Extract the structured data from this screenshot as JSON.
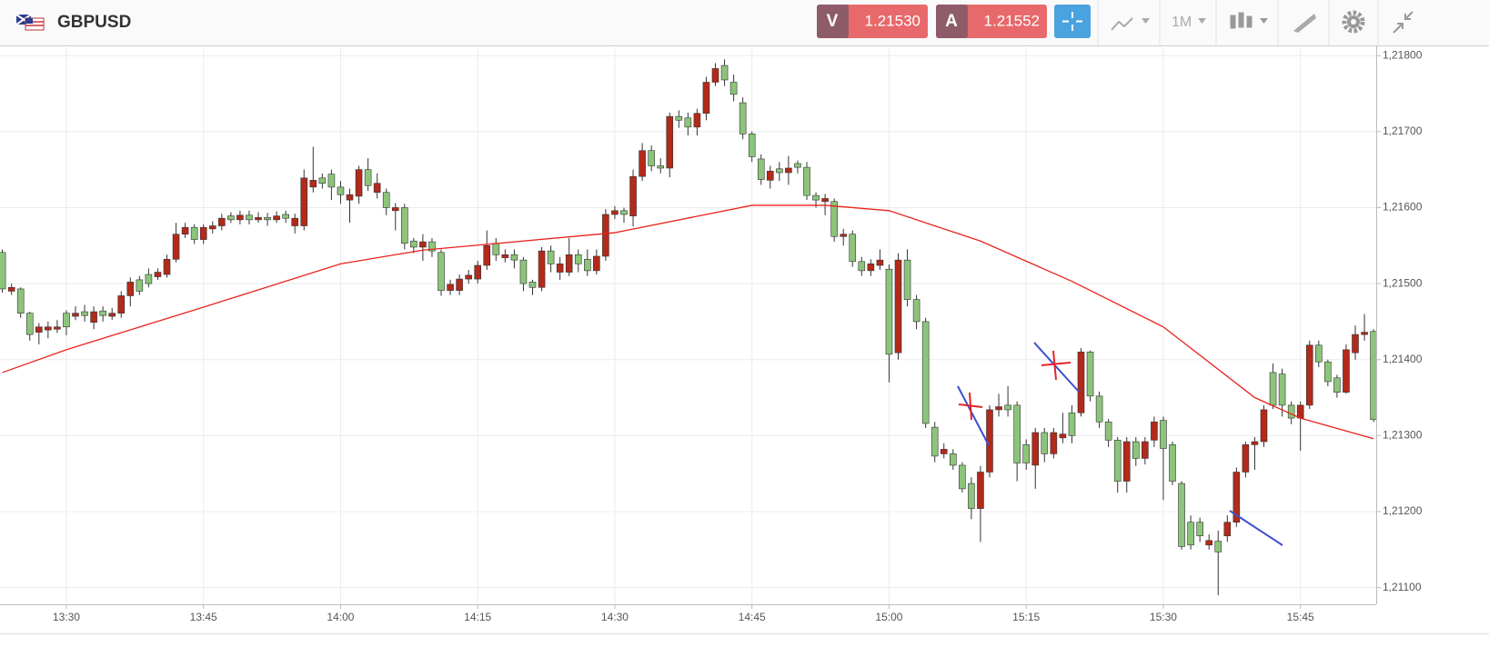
{
  "header": {
    "symbol": "GBPUSD",
    "bid_label": "V",
    "bid": "1.21530",
    "ask_label": "A",
    "ask": "1.21552",
    "timeframe": "1M"
  },
  "chart_data": {
    "type": "candlestick",
    "up_color": "#8cc57a",
    "down_color": "#b3291a",
    "grid": true,
    "x": [
      "13:23",
      "13:24",
      "13:25",
      "13:26",
      "13:27",
      "13:28",
      "13:29",
      "13:30",
      "13:31",
      "13:32",
      "13:33",
      "13:34",
      "13:35",
      "13:36",
      "13:37",
      "13:38",
      "13:39",
      "13:40",
      "13:41",
      "13:42",
      "13:43",
      "13:44",
      "13:45",
      "13:46",
      "13:47",
      "13:48",
      "13:49",
      "13:50",
      "13:51",
      "13:52",
      "13:53",
      "13:54",
      "13:55",
      "13:56",
      "13:57",
      "13:58",
      "13:59",
      "14:00",
      "14:01",
      "14:02",
      "14:03",
      "14:04",
      "14:05",
      "14:06",
      "14:07",
      "14:08",
      "14:09",
      "14:10",
      "14:11",
      "14:12",
      "14:13",
      "14:14",
      "14:15",
      "14:16",
      "14:17",
      "14:18",
      "14:19",
      "14:20",
      "14:21",
      "14:22",
      "14:23",
      "14:24",
      "14:25",
      "14:26",
      "14:27",
      "14:28",
      "14:29",
      "14:30",
      "14:31",
      "14:32",
      "14:33",
      "14:34",
      "14:35",
      "14:36",
      "14:37",
      "14:38",
      "14:39",
      "14:40",
      "14:41",
      "14:42",
      "14:43",
      "14:44",
      "14:45",
      "14:46",
      "14:47",
      "14:48",
      "14:49",
      "14:50",
      "14:51",
      "14:52",
      "14:53",
      "14:54",
      "14:55",
      "14:56",
      "14:57",
      "14:58",
      "14:59",
      "15:00",
      "15:01",
      "15:02",
      "15:03",
      "15:04",
      "15:05",
      "15:06",
      "15:07",
      "15:08",
      "15:09",
      "15:10",
      "15:11",
      "15:12",
      "15:13",
      "15:14",
      "15:15",
      "15:16",
      "15:17",
      "15:18",
      "15:19",
      "15:20",
      "15:21",
      "15:22",
      "15:23",
      "15:24",
      "15:25",
      "15:26",
      "15:27",
      "15:28",
      "15:29",
      "15:30",
      "15:31",
      "15:32",
      "15:33",
      "15:34",
      "15:35",
      "15:36",
      "15:37",
      "15:38",
      "15:39",
      "15:40",
      "15:41",
      "15:42",
      "15:43",
      "15:44",
      "15:45",
      "15:46",
      "15:47",
      "15:48",
      "15:49",
      "15:50",
      "15:51",
      "15:52",
      "15:53"
    ],
    "open": [
      1.21493,
      1.21495,
      1.21461,
      1.21433,
      1.21443,
      1.21443,
      1.21443,
      1.21443,
      1.21461,
      1.21458,
      1.21463,
      1.21458,
      1.21461,
      1.21484,
      1.21502,
      1.2149,
      1.215,
      1.21515,
      1.21532,
      1.21565,
      1.21574,
      1.21558,
      1.21574,
      1.21576,
      1.21586,
      1.21584,
      1.2159,
      1.21584,
      1.21587,
      1.21584,
      1.21589,
      1.21586,
      1.21586,
      1.21639,
      1.21636,
      1.21632,
      1.21627,
      1.21617,
      1.21617,
      1.2165,
      1.21629,
      1.21632,
      1.216,
      1.216,
      1.21553,
      1.21548,
      1.21555,
      1.21543,
      1.21491,
      1.21499,
      1.21506,
      1.21511,
      1.21524,
      1.2155,
      1.21538,
      1.21538,
      1.21531,
      1.215,
      1.21495,
      1.21543,
      1.21526,
      1.21526,
      1.21538,
      1.21526,
      1.21517,
      1.21536,
      1.21591,
      1.21596,
      1.21591,
      1.21641,
      1.21675,
      1.21655,
      1.21652,
      1.2172,
      1.21715,
      1.21706,
      1.21724,
      1.21765,
      1.21783,
      1.21768,
      1.21749,
      1.21697,
      1.21667,
      1.21637,
      1.21648,
      1.21646,
      1.21652,
      1.21653,
      1.21616,
      1.2161,
      1.21612,
      1.21562,
      1.21565,
      1.21529,
      1.21517,
      1.21526,
      1.21531,
      1.21407,
      1.21531,
      1.21479,
      1.2145,
      1.21316,
      1.21273,
      1.21282,
      1.21261,
      1.2123,
      1.21204,
      1.21252,
      1.21334,
      1.21338,
      1.21334,
      1.21264,
      1.21264,
      1.21304,
      1.21276,
      1.21304,
      1.21302,
      1.213,
      1.2141,
      1.21352,
      1.21318,
      1.21294,
      1.2124,
      1.21292,
      1.2127,
      1.21292,
      1.21318,
      1.21283,
      1.2124,
      1.21154,
      1.21156,
      1.21168,
      1.21162,
      1.21147,
      1.21186,
      1.21252,
      1.21288,
      1.21292,
      1.21334,
      1.2134,
      1.2134,
      1.21323,
      1.2134,
      1.21419,
      1.21397,
      1.21371,
      1.21357,
      1.21413,
      1.21433,
      1.21436,
      1.21321
    ],
    "high": [
      1.21545,
      1.215,
      1.21495,
      1.21463,
      1.21448,
      1.2145,
      1.21452,
      1.21465,
      1.2147,
      1.21472,
      1.2147,
      1.2147,
      1.21468,
      1.2149,
      1.21508,
      1.2151,
      1.2152,
      1.2152,
      1.21538,
      1.2158,
      1.2158,
      1.21578,
      1.21578,
      1.21582,
      1.21592,
      1.21594,
      1.21596,
      1.21596,
      1.21594,
      1.21593,
      1.21595,
      1.21596,
      1.21592,
      1.2165,
      1.2168,
      1.21645,
      1.2165,
      1.21635,
      1.21625,
      1.21655,
      1.21665,
      1.21645,
      1.21625,
      1.21606,
      1.21605,
      1.2156,
      1.21565,
      1.2156,
      1.21545,
      1.21505,
      1.21512,
      1.21518,
      1.2153,
      1.2157,
      1.2156,
      1.21545,
      1.21545,
      1.21535,
      1.21505,
      1.21548,
      1.2155,
      1.21535,
      1.2156,
      1.21545,
      1.21545,
      1.21545,
      1.21598,
      1.21602,
      1.216,
      1.2165,
      1.21685,
      1.21682,
      1.21665,
      1.21725,
      1.21728,
      1.21725,
      1.2173,
      1.21772,
      1.2179,
      1.21795,
      1.21775,
      1.21745,
      1.217,
      1.2167,
      1.21655,
      1.2166,
      1.21668,
      1.21662,
      1.2166,
      1.2162,
      1.21618,
      1.21612,
      1.21572,
      1.2157,
      1.21535,
      1.21532,
      1.21545,
      1.21525,
      1.2154,
      1.21545,
      1.21485,
      1.21455,
      1.21318,
      1.2129,
      1.21282,
      1.21265,
      1.21245,
      1.2126,
      1.2134,
      1.21355,
      1.21365,
      1.21345,
      1.21295,
      1.2131,
      1.2131,
      1.2131,
      1.2133,
      1.2134,
      1.21415,
      1.21412,
      1.21358,
      1.21322,
      1.21298,
      1.21298,
      1.21298,
      1.21298,
      1.21325,
      1.21325,
      1.21292,
      1.2124,
      1.21195,
      1.21192,
      1.2117,
      1.21175,
      1.21195,
      1.21258,
      1.21292,
      1.21298,
      1.2134,
      1.21395,
      1.21388,
      1.21345,
      1.21345,
      1.21425,
      1.21425,
      1.214,
      1.2138,
      1.2142,
      1.21445,
      1.2146,
      1.2144
    ],
    "low": [
      1.21488,
      1.21485,
      1.21455,
      1.21425,
      1.2142,
      1.21428,
      1.21435,
      1.21432,
      1.21452,
      1.2145,
      1.2144,
      1.2145,
      1.21452,
      1.21455,
      1.2147,
      1.21485,
      1.21495,
      1.21505,
      1.21508,
      1.21528,
      1.2156,
      1.21552,
      1.21552,
      1.21566,
      1.2157,
      1.2158,
      1.21578,
      1.21578,
      1.2158,
      1.21576,
      1.2158,
      1.2158,
      1.21566,
      1.2157,
      1.2162,
      1.21625,
      1.2161,
      1.21605,
      1.2158,
      1.21605,
      1.21622,
      1.21612,
      1.2159,
      1.2157,
      1.21545,
      1.2154,
      1.2153,
      1.21535,
      1.21484,
      1.21485,
      1.21485,
      1.215,
      1.215,
      1.21518,
      1.2153,
      1.21528,
      1.2152,
      1.2149,
      1.21485,
      1.2149,
      1.21515,
      1.21505,
      1.2151,
      1.21515,
      1.2151,
      1.21512,
      1.2153,
      1.21585,
      1.2158,
      1.21575,
      1.21635,
      1.21648,
      1.21645,
      1.2164,
      1.21705,
      1.21695,
      1.21695,
      1.21715,
      1.2176,
      1.2176,
      1.2174,
      1.2169,
      1.2166,
      1.2163,
      1.21625,
      1.21635,
      1.2163,
      1.21645,
      1.2161,
      1.216,
      1.2159,
      1.21555,
      1.2155,
      1.21522,
      1.2151,
      1.2151,
      1.21518,
      1.2137,
      1.214,
      1.2147,
      1.2144,
      1.2131,
      1.21265,
      1.2127,
      1.21255,
      1.21225,
      1.2119,
      1.2116,
      1.21245,
      1.21325,
      1.21325,
      1.2124,
      1.21255,
      1.2123,
      1.21265,
      1.2127,
      1.2129,
      1.2129,
      1.21325,
      1.21345,
      1.2131,
      1.21285,
      1.21225,
      1.21225,
      1.2126,
      1.21262,
      1.21285,
      1.21215,
      1.21235,
      1.2115,
      1.2115,
      1.2116,
      1.2115,
      1.2109,
      1.2116,
      1.2118,
      1.21245,
      1.21255,
      1.21285,
      1.21335,
      1.21325,
      1.21315,
      1.2128,
      1.21335,
      1.2139,
      1.21365,
      1.2135,
      1.21355,
      1.214,
      1.21425,
      1.21318
    ],
    "close": [
      1.21541,
      1.2149,
      1.21493,
      1.21461,
      1.21436,
      1.21439,
      1.2144,
      1.21461,
      1.21457,
      1.21463,
      1.21449,
      1.21464,
      1.21457,
      1.21461,
      1.21484,
      1.21505,
      1.21512,
      1.21509,
      1.21512,
      1.21532,
      1.21565,
      1.21574,
      1.21558,
      1.21572,
      1.21576,
      1.21589,
      1.21584,
      1.2159,
      1.21584,
      1.21587,
      1.21584,
      1.21591,
      1.21576,
      1.21576,
      1.21627,
      1.21639,
      1.21644,
      1.21627,
      1.2161,
      1.21615,
      1.2165,
      1.2162,
      1.2162,
      1.21596,
      1.216,
      1.21556,
      1.21548,
      1.21555,
      1.21541,
      1.21491,
      1.21491,
      1.21506,
      1.21506,
      1.21524,
      1.21553,
      1.21534,
      1.21538,
      1.21531,
      1.21502,
      1.21495,
      1.21543,
      1.21515,
      1.21515,
      1.21538,
      1.21532,
      1.21517,
      1.21536,
      1.21591,
      1.21596,
      1.21589,
      1.21641,
      1.21675,
      1.21655,
      1.21652,
      1.2172,
      1.21718,
      1.21706,
      1.21724,
      1.21765,
      1.21787,
      1.21765,
      1.21738,
      1.21697,
      1.21664,
      1.21636,
      1.21651,
      1.21646,
      1.21658,
      1.21653,
      1.21616,
      1.21608,
      1.21608,
      1.21562,
      1.21565,
      1.21529,
      1.21517,
      1.21524,
      1.21519,
      1.21409,
      1.21531,
      1.21479,
      1.2145,
      1.21311,
      1.21276,
      1.21276,
      1.21261,
      1.21237,
      1.21204,
      1.21252,
      1.21334,
      1.2134,
      1.2134,
      1.21288,
      1.21261,
      1.21304,
      1.21276,
      1.21297,
      1.2133,
      1.2133,
      1.2141,
      1.21352,
      1.21318,
      1.21294,
      1.2124,
      1.21292,
      1.2127,
      1.21294,
      1.2132,
      1.21288,
      1.21237,
      1.21186,
      1.21186,
      1.21156,
      1.21161,
      1.21168,
      1.21186,
      1.21252,
      1.21288,
      1.21292,
      1.21383,
      1.21381,
      1.2134,
      1.21323,
      1.2134,
      1.21419,
      1.21397,
      1.21376,
      1.21357,
      1.21409,
      1.21433,
      1.21437
    ],
    "moving_average": {
      "color": "#e8221b",
      "x": [
        "13:23",
        "13:30",
        "13:45",
        "14:00",
        "14:09",
        "14:30",
        "14:45",
        "14:53",
        "15:00",
        "15:10",
        "15:20",
        "15:30",
        "15:40",
        "15:45",
        "15:53"
      ],
      "values": [
        1.21383,
        1.21413,
        1.21469,
        1.21526,
        1.21544,
        1.21567,
        1.21603,
        1.21603,
        1.21596,
        1.21556,
        1.21503,
        1.21443,
        1.2135,
        1.21323,
        1.21296
      ]
    },
    "ylim": [
      1.21078,
      1.21811
    ],
    "yticks": [
      {
        "value": 1.211,
        "label": "1,21100"
      },
      {
        "value": 1.212,
        "label": "1,21200"
      },
      {
        "value": 1.213,
        "label": "1,21300"
      },
      {
        "value": 1.214,
        "label": "1,21400"
      },
      {
        "value": 1.215,
        "label": "1,21500"
      },
      {
        "value": 1.216,
        "label": "1,21600"
      },
      {
        "value": 1.217,
        "label": "1,21700"
      },
      {
        "value": 1.218,
        "label": "1,21800"
      }
    ],
    "xticks": [
      "13:30",
      "13:45",
      "14:00",
      "14:15",
      "14:30",
      "14:45",
      "15:00",
      "15:15",
      "15:30",
      "15:45"
    ]
  }
}
